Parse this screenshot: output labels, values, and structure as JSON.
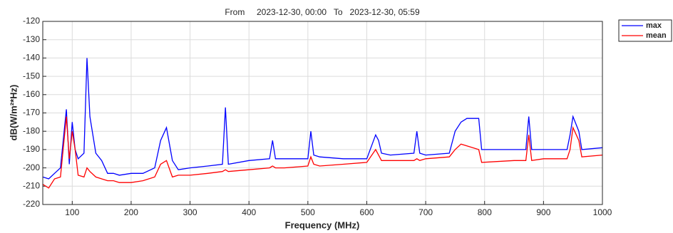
{
  "chart_data": {
    "type": "line",
    "title": "From     2023-12-30, 00:00   To   2023-12-30, 05:59",
    "xlabel": "Frequency (MHz)",
    "ylabel": "dB(W/m²*Hz)",
    "x": [
      50,
      60,
      70,
      80,
      90,
      95,
      100,
      105,
      110,
      120,
      125,
      130,
      140,
      150,
      160,
      170,
      180,
      200,
      220,
      240,
      250,
      260,
      270,
      280,
      300,
      330,
      355,
      360,
      365,
      400,
      435,
      440,
      445,
      460,
      500,
      505,
      510,
      520,
      560,
      600,
      615,
      620,
      625,
      640,
      680,
      685,
      690,
      700,
      740,
      750,
      760,
      770,
      790,
      795,
      850,
      870,
      875,
      880,
      900,
      940,
      945,
      950,
      960,
      965,
      1000
    ],
    "series": [
      {
        "name": "max",
        "color": "#0000ff",
        "values": [
          -205,
          -206,
          -203,
          -200,
          -168,
          -198,
          -175,
          -190,
          -195,
          -192,
          -140,
          -172,
          -192,
          -196,
          -203,
          -203,
          -204,
          -203,
          -203,
          -200,
          -185,
          -178,
          -196,
          -201,
          -200,
          -199,
          -198,
          -167,
          -198,
          -196,
          -195,
          -185,
          -195,
          -195,
          -195,
          -180,
          -193,
          -194,
          -195,
          -195,
          -182,
          -185,
          -192,
          -193,
          -192,
          -180,
          -192,
          -193,
          -192,
          -180,
          -175,
          -173,
          -173,
          -190,
          -190,
          -190,
          -172,
          -190,
          -190,
          -190,
          -182,
          -172,
          -180,
          -190,
          -189
        ]
      },
      {
        "name": "mean",
        "color": "#ff0000",
        "values": [
          -209,
          -211,
          -206,
          -205,
          -172,
          -195,
          -180,
          -190,
          -204,
          -205,
          -200,
          -202,
          -205,
          -206,
          -207,
          -207,
          -208,
          -208,
          -207,
          -205,
          -198,
          -196,
          -205,
          -204,
          -204,
          -203,
          -202,
          -201,
          -202,
          -201,
          -200,
          -199,
          -200,
          -200,
          -199,
          -194,
          -198,
          -199,
          -198,
          -197,
          -190,
          -193,
          -196,
          -196,
          -196,
          -195,
          -196,
          -195,
          -194,
          -190,
          -187,
          -188,
          -190,
          -197,
          -196,
          -196,
          -182,
          -196,
          -195,
          -195,
          -190,
          -178,
          -185,
          -194,
          -193
        ]
      }
    ],
    "xlim": [
      50,
      1000
    ],
    "xticks": [
      100,
      200,
      300,
      400,
      500,
      600,
      700,
      800,
      900,
      1000
    ],
    "ylim": [
      -220,
      -120
    ],
    "yticks": [
      -220,
      -210,
      -200,
      -190,
      -180,
      -170,
      -160,
      -150,
      -140,
      -130,
      -120
    ],
    "grid": true,
    "legend": "northeast-outside"
  }
}
